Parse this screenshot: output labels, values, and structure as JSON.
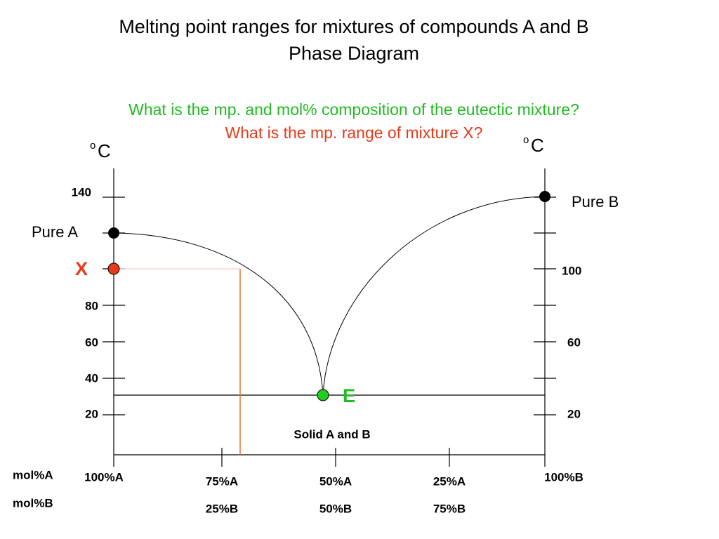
{
  "header": {
    "title_line1": "Melting point ranges for mixtures of compounds A and B",
    "title_line2": "Phase Diagram",
    "question1": "What is the mp. and mol% composition of the eutectic mixture?",
    "question2": "What is the mp. range of mixture X?"
  },
  "axes": {
    "left_unit_sup": "o",
    "left_unit": "C",
    "right_unit_sup": "o",
    "right_unit": "C",
    "left_ticks": [
      "140",
      "80",
      "60",
      "40",
      "20"
    ],
    "right_ticks": [
      "100",
      "60",
      "20"
    ]
  },
  "points": {
    "pure_a": "Pure A",
    "pure_b": "Pure B",
    "x": "X",
    "e": "E"
  },
  "region": "Solid A and B",
  "composition": {
    "row_a_label": "mol%A",
    "row_b_label": "mol%B",
    "columns": [
      {
        "a": "100%A"
      },
      {
        "a": "75%A",
        "b": "25%B"
      },
      {
        "a": "50%A",
        "b": "50%B"
      },
      {
        "a": "25%A",
        "b": "75%B"
      },
      {
        "a": "100%B"
      }
    ]
  }
}
